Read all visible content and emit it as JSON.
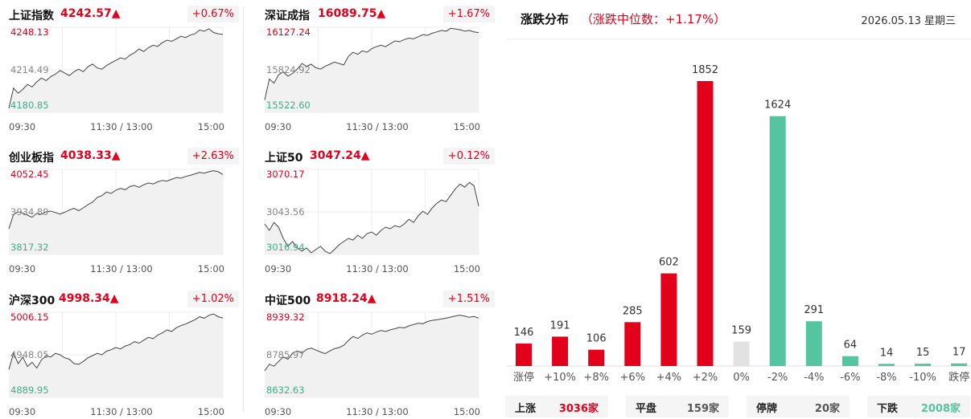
{
  "colors": {
    "up": "#e3001b",
    "down": "#55c4a0",
    "flat": "#e2e2e2",
    "grid": "#eeeeee",
    "line": "#444444",
    "area": "#f1f1f1"
  },
  "indices": [
    {
      "name": "上证指数",
      "price": "4242.57",
      "arrow": "▲",
      "change_pct": "+0.67%",
      "high_label": "4248.13",
      "mid_label": "4214.49",
      "low_label": "4180.85",
      "time_labels": [
        "09:30",
        "11:30 / 13:00",
        "15:00"
      ],
      "chart_data": {
        "type": "line",
        "x_ticks": [
          "09:30",
          "11:30 / 13:00",
          "15:00"
        ],
        "ylim": [
          4180.85,
          4248.13
        ],
        "baseline": 4214.49,
        "values": [
          4184,
          4200,
          4196,
          4199,
          4203,
          4201,
          4205,
          4208,
          4206,
          4209,
          4211,
          4214,
          4212,
          4210,
          4213,
          4215,
          4213,
          4217,
          4219,
          4216,
          4215,
          4218,
          4220,
          4222,
          4224,
          4223,
          4226,
          4228,
          4231,
          4229,
          4232,
          4234,
          4233,
          4236,
          4238,
          4237,
          4239,
          4241,
          4240,
          4242,
          4243,
          4246,
          4245,
          4247,
          4244,
          4243,
          4242.57
        ]
      }
    },
    {
      "name": "深证成指",
      "price": "16089.75",
      "arrow": "▲",
      "change_pct": "+1.67%",
      "high_label": "16127.24",
      "mid_label": "15824.92",
      "low_label": "15522.60",
      "time_labels": [
        "09:30",
        "11:30 / 13:00",
        "15:00"
      ],
      "chart_data": {
        "type": "line",
        "x_ticks": [
          "09:30",
          "11:30 / 13:00",
          "15:00"
        ],
        "ylim": [
          15522.6,
          16127.24
        ],
        "baseline": 15824.92,
        "values": [
          15610,
          15760,
          15730,
          15790,
          15810,
          15780,
          15800,
          15830,
          15870,
          15850,
          15865,
          15840,
          15830,
          15850,
          15865,
          15880,
          15870,
          15860,
          15920,
          15950,
          15935,
          15960,
          15950,
          15975,
          15990,
          16000,
          15990,
          16010,
          16030,
          16025,
          16040,
          16050,
          16045,
          16060,
          16075,
          16070,
          16085,
          16095,
          16105,
          16100,
          16120,
          16115,
          16110,
          16100,
          16105,
          16095,
          16089.75
        ]
      }
    },
    {
      "name": "创业板指",
      "price": "4038.33",
      "arrow": "▲",
      "change_pct": "+2.63%",
      "high_label": "4052.45",
      "mid_label": "3934.89",
      "low_label": "3817.32",
      "time_labels": [
        "09:30",
        "11:30 / 13:00",
        "15:00"
      ],
      "chart_data": {
        "type": "line",
        "x_ticks": [
          "09:30",
          "11:30 / 13:00",
          "15:00"
        ],
        "ylim": [
          3817.32,
          4052.45
        ],
        "baseline": 3934.89,
        "values": [
          3888,
          3928,
          3935,
          3932,
          3926,
          3920,
          3931,
          3928,
          3935,
          3937,
          3933,
          3929,
          3934,
          3940,
          3945,
          3938,
          3946,
          3955,
          3962,
          3975,
          3980,
          3990,
          3986,
          3995,
          4000,
          3996,
          4005,
          4008,
          4003,
          4010,
          4015,
          4012,
          4018,
          4022,
          4020,
          4025,
          4030,
          4028,
          4033,
          4036,
          4040,
          4044,
          4042,
          4046,
          4049,
          4046,
          4038.33
        ]
      }
    },
    {
      "name": "上证50",
      "price": "3047.24",
      "arrow": "▲",
      "change_pct": "+0.12%",
      "high_label": "3070.17",
      "mid_label": "3043.56",
      "low_label": "3016.94",
      "time_labels": [
        "09:30",
        "11:30 / 13:00",
        "15:00"
      ],
      "chart_data": {
        "type": "line",
        "x_ticks": [
          "09:30",
          "11:30 / 13:00",
          "15:00"
        ],
        "ylim": [
          3016.94,
          3070.17
        ],
        "baseline": 3043.56,
        "values": [
          3036,
          3032,
          3037,
          3034,
          3027,
          3022,
          3025,
          3021,
          3019,
          3021,
          3018,
          3020,
          3022,
          3019,
          3017.5,
          3020,
          3023,
          3025,
          3027,
          3026,
          3029,
          3027,
          3030,
          3031,
          3029,
          3032,
          3034,
          3033,
          3035,
          3034,
          3036,
          3039,
          3037,
          3041,
          3044,
          3042,
          3046,
          3049,
          3051,
          3050,
          3054,
          3058,
          3061,
          3059,
          3062,
          3060,
          3047.24
        ]
      }
    },
    {
      "name": "沪深300",
      "price": "4998.34",
      "arrow": "▲",
      "change_pct": "+1.02%",
      "high_label": "5006.15",
      "mid_label": "4948.05",
      "low_label": "4889.95",
      "time_labels": [
        "09:30",
        "11:30 / 13:00",
        "15:00"
      ],
      "chart_data": {
        "type": "line",
        "x_ticks": [
          "09:30",
          "11:30 / 13:00",
          "15:00"
        ],
        "ylim": [
          4889.95,
          5006.15
        ],
        "baseline": 4948.05,
        "values": [
          4928,
          4950,
          4936,
          4945,
          4932,
          4938,
          4930,
          4941,
          4947,
          4945,
          4950,
          4948,
          4944,
          4942,
          4936,
          4935,
          4939,
          4944,
          4947,
          4950,
          4948,
          4953,
          4955,
          4958,
          4956,
          4960,
          4962,
          4966,
          4964,
          4968,
          4972,
          4970,
          4975,
          4978,
          4982,
          4980,
          4985,
          4988,
          4990,
          4993,
          4996,
          5000,
          4998,
          5002,
          5004,
          5000,
          4998.34
        ]
      }
    },
    {
      "name": "中证500",
      "price": "8918.24",
      "arrow": "▲",
      "change_pct": "+1.51%",
      "high_label": "8939.32",
      "mid_label": "8785.97",
      "low_label": "8632.63",
      "time_labels": [
        "09:30",
        "11:30 / 13:00",
        "15:00"
      ],
      "chart_data": {
        "type": "line",
        "x_ticks": [
          "09:30",
          "11:30 / 13:00",
          "15:00"
        ],
        "ylim": [
          8632.63,
          8939.32
        ],
        "baseline": 8785.97,
        "values": [
          8728,
          8752,
          8745,
          8762,
          8778,
          8770,
          8792,
          8800,
          8792,
          8805,
          8810,
          8803,
          8796,
          8790,
          8800,
          8808,
          8812,
          8820,
          8838,
          8852,
          8845,
          8857,
          8865,
          8860,
          8868,
          8874,
          8870,
          8876,
          8880,
          8885,
          8883,
          8890,
          8895,
          8900,
          8898,
          8906,
          8910,
          8912,
          8915,
          8918,
          8922,
          8926,
          8929,
          8925,
          8921,
          8924,
          8918.24
        ]
      }
    }
  ],
  "distribution": {
    "title": "涨跌分布",
    "subtitle": "（涨跌中位数：+1.17%）",
    "date": "2026.05.13 星期三",
    "chart_data": {
      "type": "bar",
      "categories": [
        "涨停",
        "+10%",
        "+8%",
        "+6%",
        "+4%",
        "+2%",
        "0%",
        "-2%",
        "-4%",
        "-6%",
        "-8%",
        "-10%",
        "跌停"
      ],
      "values": [
        146,
        191,
        106,
        285,
        602,
        1852,
        159,
        1624,
        291,
        64,
        14,
        15,
        17
      ],
      "bar_colors": [
        "up",
        "up",
        "up",
        "up",
        "up",
        "up",
        "flat",
        "down",
        "down",
        "down",
        "down",
        "down",
        "down"
      ],
      "ylim": [
        0,
        1852
      ]
    },
    "summary": [
      {
        "label": "上涨",
        "value": "3036家",
        "color": "up"
      },
      {
        "label": "平盘",
        "value": "159家",
        "color": "neutral"
      },
      {
        "label": "停牌",
        "value": "20家",
        "color": "neutral"
      },
      {
        "label": "下跌",
        "value": "2008家",
        "color": "down"
      }
    ]
  }
}
